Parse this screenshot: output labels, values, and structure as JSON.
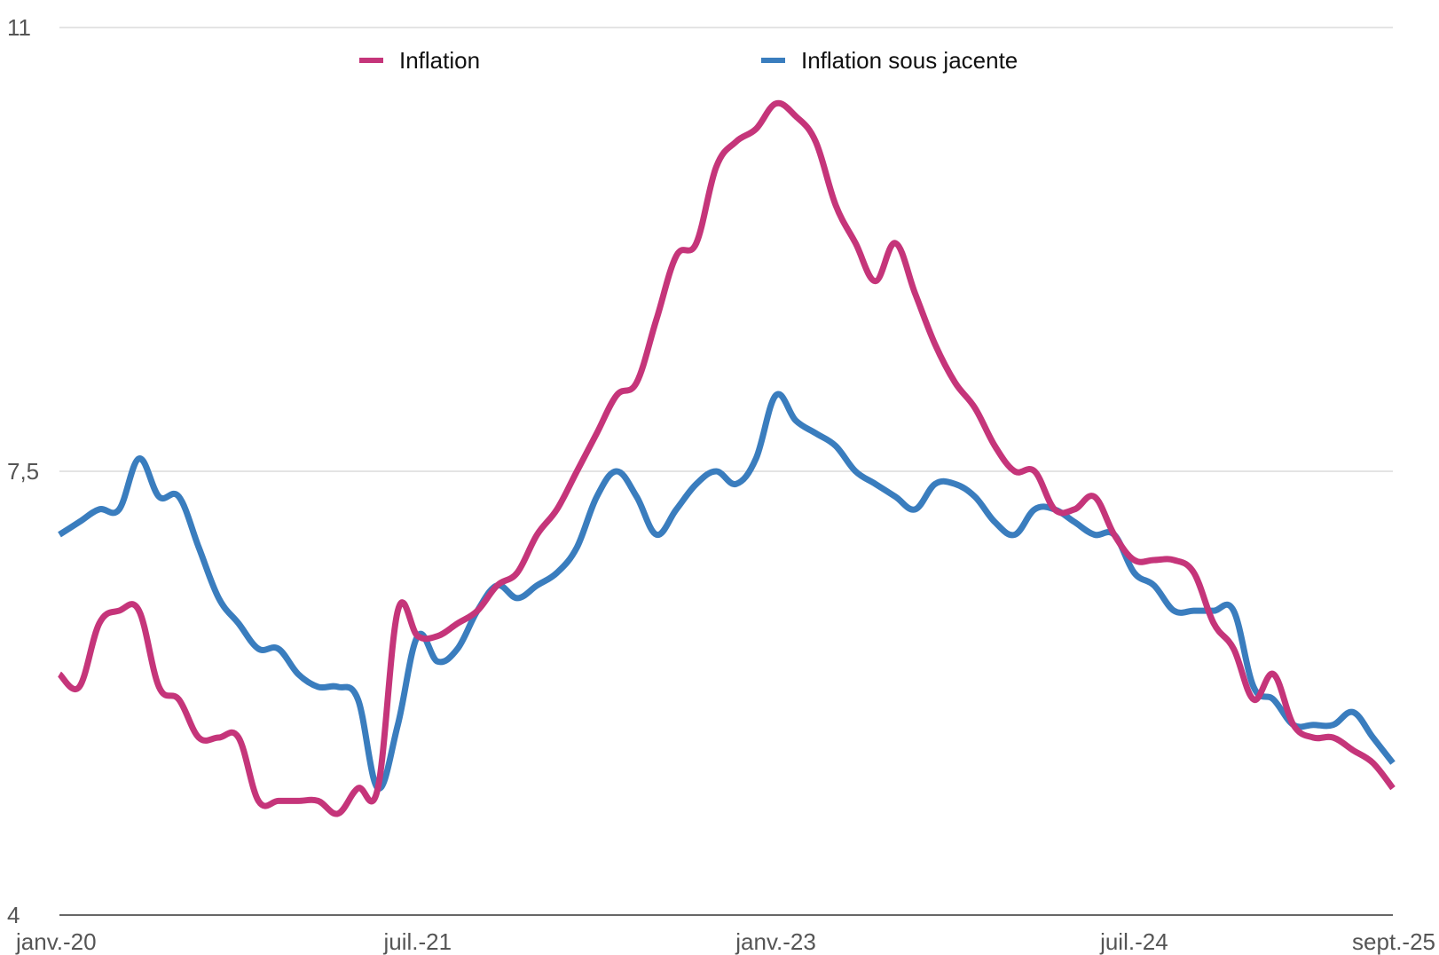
{
  "chart_data": {
    "type": "line",
    "title": "",
    "xlabel": "",
    "ylabel": "",
    "ylim": [
      4,
      11
    ],
    "y_ticks": [
      {
        "value": 4,
        "label": "4"
      },
      {
        "value": 7.5,
        "label": "7,5"
      },
      {
        "value": 11,
        "label": "11"
      }
    ],
    "x_ticks": [
      {
        "index": 0,
        "label": "janv.-20"
      },
      {
        "index": 18,
        "label": "juil.-21"
      },
      {
        "index": 36,
        "label": "janv.-23"
      },
      {
        "index": 54,
        "label": "juil.-24"
      },
      {
        "index": 68,
        "label": "sept.-25"
      }
    ],
    "grid": "horizontal",
    "legend_position": "top",
    "series": [
      {
        "name": "Inflation",
        "color": "#c5357a",
        "values": [
          5.9,
          5.8,
          6.3,
          6.4,
          6.4,
          5.8,
          5.7,
          5.4,
          5.4,
          5.4,
          4.9,
          4.9,
          4.9,
          4.9,
          4.8,
          5.0,
          5.0,
          6.4,
          6.2,
          6.2,
          6.3,
          6.4,
          6.6,
          6.7,
          7.0,
          7.2,
          7.5,
          7.8,
          8.1,
          8.2,
          8.7,
          9.2,
          9.3,
          9.9,
          10.1,
          10.2,
          10.4,
          10.3,
          10.1,
          9.6,
          9.3,
          9.0,
          9.3,
          8.9,
          8.5,
          8.2,
          8.0,
          7.7,
          7.5,
          7.5,
          7.2,
          7.2,
          7.3,
          7.0,
          6.8,
          6.8,
          6.8,
          6.7,
          6.3,
          6.1,
          5.7,
          5.9,
          5.5,
          5.4,
          5.4,
          5.3,
          5.2,
          5.0
        ]
      },
      {
        "name": "Inflation sous jacente",
        "color": "#3a7dbe",
        "values": [
          7.0,
          7.1,
          7.2,
          7.2,
          7.6,
          7.3,
          7.3,
          6.9,
          6.5,
          6.3,
          6.1,
          6.1,
          5.9,
          5.8,
          5.8,
          5.7,
          5.0,
          5.5,
          6.2,
          6.0,
          6.1,
          6.4,
          6.6,
          6.5,
          6.6,
          6.7,
          6.9,
          7.3,
          7.5,
          7.3,
          7.0,
          7.2,
          7.4,
          7.5,
          7.4,
          7.6,
          8.1,
          7.9,
          7.8,
          7.7,
          7.5,
          7.4,
          7.3,
          7.2,
          7.4,
          7.4,
          7.3,
          7.1,
          7.0,
          7.2,
          7.2,
          7.1,
          7.0,
          7.0,
          6.7,
          6.6,
          6.4,
          6.4,
          6.4,
          6.4,
          5.8,
          5.7,
          5.5,
          5.5,
          5.5,
          5.6,
          5.4,
          5.2
        ]
      }
    ]
  }
}
